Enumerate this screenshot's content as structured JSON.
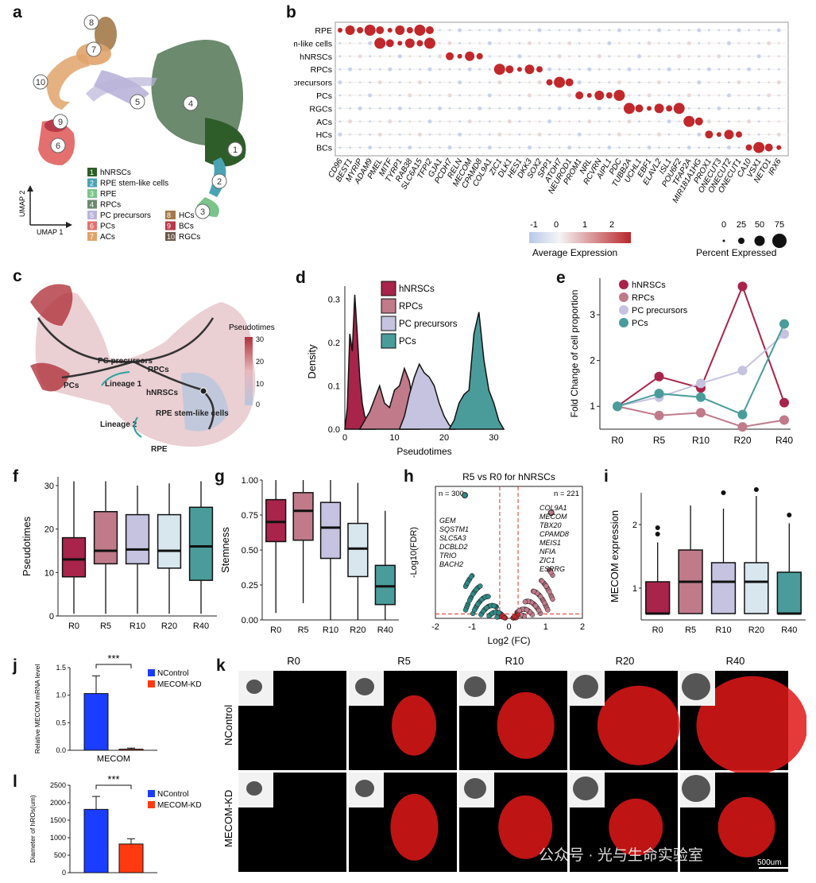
{
  "panels": {
    "a": {
      "letter": "a",
      "umap_label_y": "UMAP 2",
      "umap_label_x": "UMAP 1",
      "cluster_numbers": [
        "1",
        "2",
        "3",
        "4",
        "5",
        "6",
        "7",
        "8",
        "9",
        "10"
      ],
      "legend_left": [
        {
          "num": "1",
          "name": "hNRSCs",
          "color": "#2e5d2a"
        },
        {
          "num": "2",
          "name": "RPE stem-like cells",
          "color": "#4aa3b3"
        },
        {
          "num": "3",
          "name": "RPE",
          "color": "#7ac48a"
        },
        {
          "num": "4",
          "name": "RPCs",
          "color": "#6b8a6e"
        },
        {
          "num": "5",
          "name": "PC precursors",
          "color": "#b9b4d9"
        },
        {
          "num": "6",
          "name": "PCs",
          "color": "#e3706e"
        },
        {
          "num": "7",
          "name": "ACs",
          "color": "#e0a36a"
        }
      ],
      "legend_right": [
        {
          "num": "8",
          "name": "HCs",
          "color": "#a47a4a"
        },
        {
          "num": "9",
          "name": "BCs",
          "color": "#b83a4a"
        },
        {
          "num": "10",
          "name": "RGCs",
          "color": "#6b5a4a"
        }
      ]
    },
    "b": {
      "letter": "b",
      "rows": [
        "RPE",
        "RPE stem-like cells",
        "hNRSCs",
        "RPCs",
        "PC precursors",
        "PCs",
        "RGCs",
        "ACs",
        "HCs",
        "BCs"
      ],
      "genes": [
        "CD96",
        "BEST1",
        "MYRIP",
        "ADAM9",
        "PMEL",
        "MITF",
        "TYRP1",
        "RAB38",
        "SLC6A15",
        "TFPI2",
        "GJA1",
        "PCDH7",
        "RELN",
        "MECOM",
        "CPAMD8",
        "COL9A1",
        "ZIC1",
        "DLK1",
        "HES1",
        "DKK3",
        "SOX2",
        "SPP1",
        "ATOH7",
        "NEUROD1",
        "PROM1",
        "NRL",
        "RCVRN",
        "AIPL1",
        "PDC",
        "TUBB2A",
        "UCHL1",
        "EBF1",
        "ELAVL2",
        "ISL1",
        "POU6F2",
        "TFAP2A",
        "MIR181A1HG",
        "PROX1",
        "ONECUT3",
        "ONECUT2",
        "ONECUT1",
        "CA10",
        "VSX1",
        "NETO1",
        "IRX6"
      ],
      "colorbar_ticks": [
        "-1",
        "0",
        "1",
        "2"
      ],
      "colorbar_label": "Average Expression",
      "size_ticks": [
        "0",
        "25",
        "50",
        "75"
      ],
      "size_label": "Percent Expressed"
    },
    "c": {
      "letter": "c",
      "labels": {
        "pc_precursors": "PC precursors",
        "rpcs": "RPCs",
        "pcs": "PCs",
        "lineage1": "Lineage 1",
        "hnrscs": "hNRSCs",
        "rpe_stem": "RPE stem-like cells",
        "lineage2": "Lineage 2",
        "rpe": "RPE"
      },
      "colorbar_title": "Pseudotimes",
      "colorbar_ticks": [
        "30",
        "20",
        "10",
        "0"
      ]
    },
    "d": {
      "letter": "d",
      "legend": [
        "hNRSCs",
        "RPCs",
        "PC precursors",
        "PCs"
      ],
      "y_label": "Density",
      "x_label": "Pseudotimes",
      "y_ticks": [
        "0.3",
        "0.2",
        "0.1",
        "0.0"
      ],
      "x_ticks": [
        "0",
        "10",
        "20",
        "30"
      ]
    },
    "e": {
      "letter": "e",
      "legend": [
        "hNRSCs",
        "RPCs",
        "PC precursors",
        "PCs"
      ],
      "y_label": "Fold Change of cell proportion",
      "x_ticks": [
        "R0",
        "R5",
        "R10",
        "R20",
        "R40"
      ],
      "y_ticks": [
        "1",
        "2",
        "3"
      ]
    },
    "f": {
      "letter": "f",
      "y_label": "Pseudotimes",
      "x_ticks": [
        "R0",
        "R5",
        "R10",
        "R20",
        "R40"
      ],
      "y_ticks": [
        "0",
        "10",
        "20",
        "30"
      ]
    },
    "g": {
      "letter": "g",
      "y_label": "Stemness",
      "x_ticks": [
        "R0",
        "R5",
        "R10",
        "R20",
        "R40"
      ],
      "y_ticks": [
        "1.00",
        "0.75",
        "0.50",
        "0.25",
        "0.00"
      ]
    },
    "h": {
      "letter": "h",
      "title": "R5 vs R0 for hNRSCs",
      "n_left": "n = 300",
      "n_right": "n = 221",
      "genes_left": [
        "GEM",
        "SQSTM1",
        "SLC5A3",
        "DCBLD2",
        "TRIO",
        "BACH2"
      ],
      "genes_right": [
        "COL9A1",
        "MECOM",
        "TBX20",
        "CPAMD8",
        "MEIS1",
        "NFIA",
        "ZIC1",
        "ESRRG"
      ],
      "y_label": "-Log10(FDR)",
      "x_label": "Log2 (FC)",
      "x_ticks": [
        "-2",
        "-1",
        "0",
        "1",
        "2"
      ]
    },
    "i": {
      "letter": "i",
      "y_label": "MECOM expression",
      "x_ticks": [
        "R0",
        "R5",
        "R10",
        "R20",
        "R40"
      ],
      "y_ticks": [
        "2",
        "1"
      ]
    },
    "j": {
      "letter": "j",
      "y_label": "Relative MECOM mRNA level",
      "x_label": "MECOM",
      "sig": "***",
      "legend": [
        "NControl",
        "MECOM-KD"
      ],
      "y_ticks": [
        "1.5",
        "1.0",
        "0.5",
        "0.0"
      ]
    },
    "k": {
      "letter": "k",
      "cols": [
        "R0",
        "R5",
        "R10",
        "R20",
        "R40"
      ],
      "rows": [
        "NControl",
        "MECOM-KD"
      ],
      "scale_bar": "500um",
      "watermark": "公众号 · 光与生命实验室"
    },
    "l": {
      "letter": "l",
      "y_label": "Diameter of hROs(um)",
      "sig": "***",
      "legend": [
        "NControl",
        "MECOM-KD"
      ],
      "y_ticks": [
        "2500",
        "2000",
        "1500",
        "1000",
        "500",
        "0"
      ]
    }
  },
  "chart_data": [
    {
      "type": "area",
      "panel": "d",
      "title": "",
      "xlabel": "Pseudotimes",
      "ylabel": "Density",
      "xlim": [
        0,
        32
      ],
      "ylim": [
        0,
        0.33
      ],
      "series": [
        {
          "name": "hNRSCs",
          "color": "#a8244a",
          "x": [
            0,
            0.5,
            1,
            1.5,
            2,
            2.5,
            3,
            3.5,
            4,
            5,
            6
          ],
          "values": [
            0,
            0.05,
            0.22,
            0.18,
            0.31,
            0.22,
            0.12,
            0.06,
            0.03,
            0.01,
            0
          ]
        },
        {
          "name": "RPCs",
          "color": "#c07a8a",
          "x": [
            3,
            4,
            5,
            6,
            7,
            8,
            9,
            10,
            11,
            12,
            13,
            14,
            15
          ],
          "values": [
            0,
            0.02,
            0.04,
            0.07,
            0.1,
            0.06,
            0.05,
            0.09,
            0.1,
            0.14,
            0.11,
            0.04,
            0
          ]
        },
        {
          "name": "PC precursors",
          "color": "#c6c3e0",
          "x": [
            11,
            12,
            13,
            14,
            15,
            16,
            17,
            18,
            19,
            20,
            21,
            22
          ],
          "values": [
            0,
            0.03,
            0.08,
            0.12,
            0.15,
            0.13,
            0.12,
            0.1,
            0.06,
            0.03,
            0.01,
            0
          ]
        },
        {
          "name": "PCs",
          "color": "#4a9c9a",
          "x": [
            21,
            22,
            23,
            24,
            25,
            26,
            27,
            28,
            29,
            30,
            31,
            32
          ],
          "values": [
            0,
            0.02,
            0.06,
            0.08,
            0.09,
            0.22,
            0.27,
            0.16,
            0.09,
            0.06,
            0.02,
            0
          ]
        }
      ]
    },
    {
      "type": "line",
      "panel": "e",
      "title": "",
      "xlabel": "",
      "ylabel": "Fold Change of cell proportion",
      "categories": [
        "R0",
        "R5",
        "R10",
        "R20",
        "R40"
      ],
      "ylim": [
        0.5,
        3.8
      ],
      "series": [
        {
          "name": "hNRSCs",
          "color": "#a8244a",
          "values": [
            1.0,
            1.65,
            1.4,
            3.62,
            1.08
          ]
        },
        {
          "name": "RPCs",
          "color": "#c07a8a",
          "values": [
            1.0,
            0.8,
            0.86,
            0.55,
            0.7
          ]
        },
        {
          "name": "PC precursors",
          "color": "#c6c3e0",
          "values": [
            1.0,
            1.2,
            1.5,
            1.78,
            2.58
          ]
        },
        {
          "name": "PCs",
          "color": "#4a9c9a",
          "values": [
            1.0,
            1.28,
            1.2,
            0.82,
            2.8
          ]
        }
      ]
    },
    {
      "type": "box",
      "panel": "f",
      "ylabel": "Pseudotimes",
      "categories": [
        "R0",
        "R5",
        "R10",
        "R20",
        "R40"
      ],
      "ylim": [
        0,
        32
      ],
      "colors": [
        "#a8244a",
        "#c07a8a",
        "#c6c3e0",
        "#d8e6ee",
        "#4a9c9a"
      ],
      "boxes": [
        {
          "min": 0.5,
          "q1": 9,
          "median": 13,
          "q3": 18,
          "max": 31
        },
        {
          "min": 0.5,
          "q1": 12,
          "median": 15,
          "q3": 24,
          "max": 31
        },
        {
          "min": 0.5,
          "q1": 12,
          "median": 15.3,
          "q3": 23.3,
          "max": 30
        },
        {
          "min": 0.5,
          "q1": 11,
          "median": 15,
          "q3": 23.3,
          "max": 30.5
        },
        {
          "min": 0.5,
          "q1": 8.2,
          "median": 16,
          "q3": 25,
          "max": 31
        }
      ]
    },
    {
      "type": "box",
      "panel": "g",
      "ylabel": "Stemness",
      "categories": [
        "R0",
        "R5",
        "R10",
        "R20",
        "R40"
      ],
      "ylim": [
        0,
        1.0
      ],
      "colors": [
        "#a8244a",
        "#c07a8a",
        "#c6c3e0",
        "#d8e6ee",
        "#4a9c9a"
      ],
      "boxes": [
        {
          "min": 0.05,
          "q1": 0.56,
          "median": 0.7,
          "q3": 0.86,
          "max": 1.0
        },
        {
          "min": 0.12,
          "q1": 0.57,
          "median": 0.78,
          "q3": 0.91,
          "max": 1.0
        },
        {
          "min": 0.0,
          "q1": 0.44,
          "median": 0.66,
          "q3": 0.84,
          "max": 1.0
        },
        {
          "min": 0.0,
          "q1": 0.31,
          "median": 0.51,
          "q3": 0.69,
          "max": 0.98
        },
        {
          "min": 0.0,
          "q1": 0.11,
          "median": 0.24,
          "q3": 0.39,
          "max": 0.78
        }
      ]
    },
    {
      "type": "scatter",
      "panel": "h",
      "title": "R5 vs R0 for hNRSCs",
      "xlabel": "Log2 (FC)",
      "ylabel": "-Log10(FDR)",
      "xlim": [
        -2,
        2
      ],
      "ylim": [
        0,
        60
      ],
      "n_down": 300,
      "n_up": 221
    },
    {
      "type": "box",
      "panel": "i",
      "ylabel": "MECOM expression",
      "categories": [
        "R0",
        "R5",
        "R10",
        "R20",
        "R40"
      ],
      "ylim": [
        0.5,
        2.5
      ],
      "colors": [
        "#a8244a",
        "#c07a8a",
        "#c6c3e0",
        "#d8e6ee",
        "#4a9c9a"
      ],
      "boxes": [
        {
          "min": 0.6,
          "q1": 0.6,
          "median": 0.6,
          "q3": 1.1,
          "max": 1.72,
          "outliers": [
            1.85,
            1.95
          ]
        },
        {
          "min": 0.6,
          "q1": 0.6,
          "median": 1.1,
          "q3": 1.6,
          "max": 2.3
        },
        {
          "min": 0.6,
          "q1": 0.6,
          "median": 1.1,
          "q3": 1.4,
          "max": 2.25,
          "outliers": [
            2.5
          ]
        },
        {
          "min": 0.6,
          "q1": 0.6,
          "median": 1.1,
          "q3": 1.4,
          "max": 2.45,
          "outliers": [
            2.55
          ]
        },
        {
          "min": 0.6,
          "q1": 0.6,
          "median": 0.6,
          "q3": 1.25,
          "max": 2.02,
          "outliers": [
            2.15
          ]
        }
      ]
    },
    {
      "type": "bar",
      "panel": "j",
      "ylabel": "Relative MECOM mRNA level",
      "categories": [
        "MECOM"
      ],
      "ylim": [
        0,
        1.5
      ],
      "series": [
        {
          "name": "NControl",
          "color": "#1a3dff",
          "values": [
            1.03
          ],
          "error": [
            0.32
          ]
        },
        {
          "name": "MECOM-KD",
          "color": "#ff3a10",
          "values": [
            0.02
          ],
          "error": [
            0.02
          ]
        }
      ]
    },
    {
      "type": "bar",
      "panel": "l",
      "ylabel": "Diameter of hROs(um)",
      "categories": [
        ""
      ],
      "ylim": [
        0,
        2500
      ],
      "series": [
        {
          "name": "NControl",
          "color": "#1a3dff",
          "values": [
            1810
          ],
          "error": [
            370
          ]
        },
        {
          "name": "MECOM-KD",
          "color": "#ff3a10",
          "values": [
            820
          ],
          "error": [
            150
          ]
        }
      ]
    }
  ]
}
